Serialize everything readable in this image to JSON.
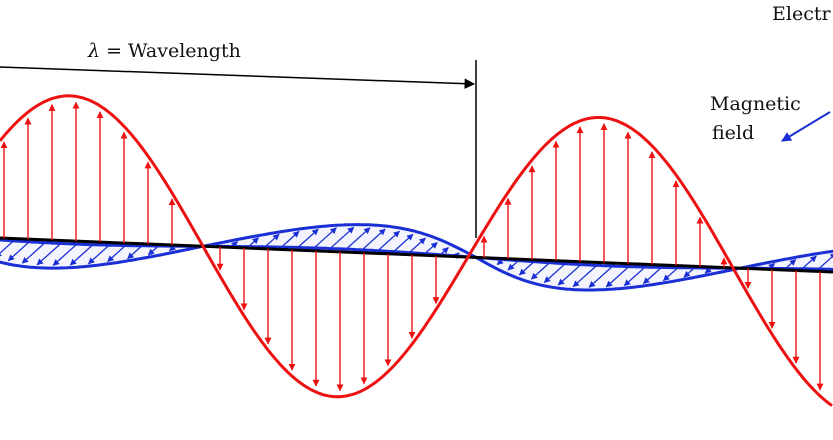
{
  "diagram": {
    "title": "",
    "labels": {
      "wavelength_symbol": "λ",
      "wavelength_text": " = Wavelength",
      "magnetic_line1": "Magnetic",
      "magnetic_line2": "field",
      "electric_partial": "Electr"
    },
    "colors": {
      "electric": "#ee1111",
      "magnetic": "#1a2fd6",
      "axis": "#000000",
      "text": "#111111"
    }
  }
}
